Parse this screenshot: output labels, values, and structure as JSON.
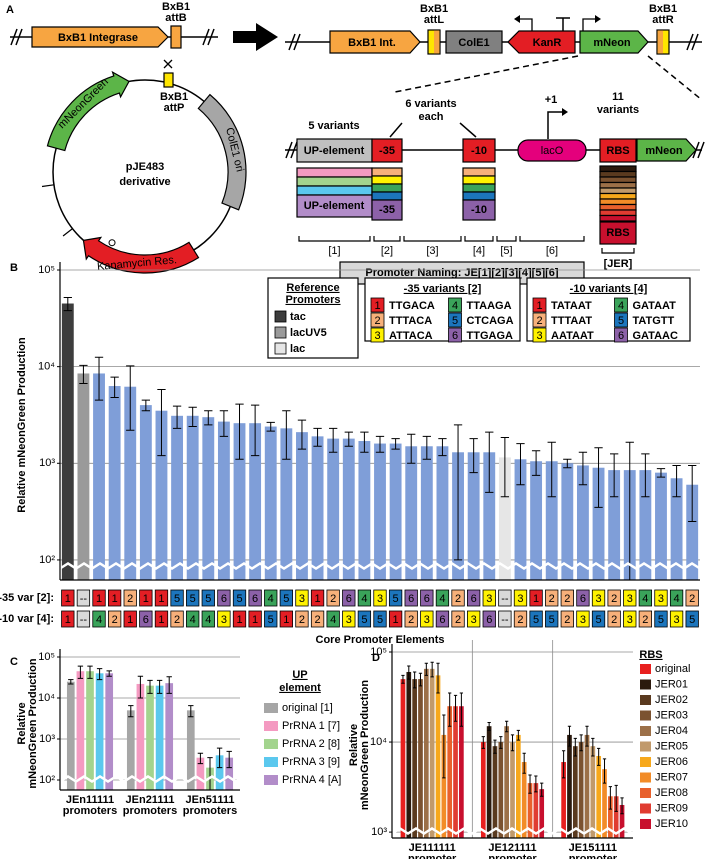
{
  "panel_a": {
    "label": "A",
    "integrase": "BxB1 Integrase",
    "attB": [
      "BxB1",
      "attB"
    ],
    "attP": [
      "BxB1",
      "attP"
    ],
    "plasmid": [
      "pJE483",
      "derivative"
    ],
    "plasmid_mneongreen": "mNeonGreen",
    "plasmid_cole1": "ColE1 ori",
    "plasmid_kanr": "Kanamycin Res.",
    "int": "BxB1 Int.",
    "attL": [
      "BxB1",
      "attL"
    ],
    "cole1": "ColE1",
    "kanr": "KanR",
    "mneon": "mNeon",
    "attR": [
      "BxB1",
      "attR"
    ],
    "up_variants": "5 variants",
    "m35_variants": [
      "6 variants",
      "each"
    ],
    "plus1": "+1",
    "rbs_variants": [
      "11",
      "variants"
    ],
    "up": "UP-element",
    "m35": "-35",
    "m10": "-10",
    "laco": "lacO",
    "rbs": "RBS",
    "mneon2": "mNeon",
    "up_var": "UP-element",
    "m35_var": "-35",
    "m10_var": "-10",
    "rbs_var": "RBS",
    "positions": [
      "[1]",
      "[2]",
      "[3]",
      "[4]",
      "[5]",
      "[6]"
    ],
    "naming": "Promoter Naming: JE[1][2][3][4][5][6]",
    "jer": "[JER]"
  },
  "chart_data": [
    {
      "type": "bar",
      "panel": "B",
      "y_label": "Relative mNeonGreen Production",
      "x_label": "Core Promoter Elements",
      "log_scale": true,
      "grid": true,
      "ylim": [
        62,
        100000
      ],
      "yticks": [
        {
          "value": 100,
          "label": "10²"
        },
        {
          "value": 1000,
          "label": "10³"
        },
        {
          "value": 10000,
          "label": "10⁴"
        },
        {
          "value": 100000,
          "label": "10⁵"
        }
      ],
      "values": [
        45000,
        8500,
        8500,
        6300,
        6200,
        4000,
        3500,
        3100,
        3100,
        3000,
        2700,
        2600,
        2600,
        2400,
        2300,
        2100,
        1900,
        1800,
        1800,
        1700,
        1600,
        1600,
        1500,
        1500,
        1500,
        1300,
        1300,
        1300,
        1150,
        1100,
        1050,
        1050,
        1000,
        950,
        900,
        850,
        850,
        850,
        800,
        700,
        600
      ],
      "errors": [
        7000,
        1800,
        4000,
        1500,
        4000,
        500,
        2300,
        800,
        700,
        500,
        800,
        1500,
        1400,
        250,
        1200,
        700,
        400,
        500,
        300,
        400,
        300,
        200,
        500,
        400,
        300,
        1200,
        500,
        800,
        700,
        500,
        300,
        600,
        100,
        350,
        550,
        400,
        800,
        400,
        80,
        250,
        350
      ],
      "colors": [
        "#3d3d3d",
        "#9a9a9a",
        "#7f9ed8",
        "#7f9ed8",
        "#7f9ed8",
        "#7f9ed8",
        "#7f9ed8",
        "#7f9ed8",
        "#7f9ed8",
        "#7f9ed8",
        "#7f9ed8",
        "#7f9ed8",
        "#7f9ed8",
        "#7f9ed8",
        "#7f9ed8",
        "#7f9ed8",
        "#7f9ed8",
        "#7f9ed8",
        "#7f9ed8",
        "#7f9ed8",
        "#7f9ed8",
        "#7f9ed8",
        "#7f9ed8",
        "#7f9ed8",
        "#7f9ed8",
        "#7f9ed8",
        "#7f9ed8",
        "#7f9ed8",
        "#e6e6e6",
        "#7f9ed8",
        "#7f9ed8",
        "#7f9ed8",
        "#7f9ed8",
        "#7f9ed8",
        "#7f9ed8",
        "#7f9ed8",
        "#7f9ed8",
        "#7f9ed8",
        "#7f9ed8",
        "#7f9ed8",
        "#7f9ed8"
      ],
      "element_rows": [
        {
          "label": "-35 var [2]:",
          "codes": [
            "1",
            "--",
            "1",
            "1",
            "2",
            "1",
            "1",
            "5",
            "5",
            "5",
            "6",
            "5",
            "6",
            "4",
            "5",
            "3",
            "1",
            "2",
            "6",
            "4",
            "3",
            "5",
            "6",
            "6",
            "4",
            "2",
            "6",
            "3",
            "--",
            "3",
            "1",
            "2",
            "2",
            "6",
            "3",
            "2",
            "3",
            "4",
            "3",
            "4",
            "2"
          ]
        },
        {
          "label": "-10 var [4]:",
          "codes": [
            "1",
            "--",
            "4",
            "2",
            "1",
            "6",
            "1",
            "2",
            "4",
            "4",
            "3",
            "1",
            "1",
            "5",
            "1",
            "2",
            "2",
            "4",
            "3",
            "5",
            "5",
            "1",
            "2",
            "3",
            "6",
            "2",
            "3",
            "6",
            "--",
            "2",
            "5",
            "5",
            "2",
            "3",
            "5",
            "2",
            "3",
            "2",
            "5",
            "3",
            "5"
          ]
        }
      ],
      "code_colors": {
        "1": "#e31e24",
        "2": "#f7b07a",
        "3": "#fff200",
        "4": "#3aa35a",
        "5": "#1c75bc",
        "6": "#8c61a8",
        "--": "#d9d9d9"
      },
      "reference_legend": {
        "title": [
          "Reference",
          "Promoters"
        ],
        "items": [
          {
            "name": "tac",
            "color": "#3d3d3d"
          },
          {
            "name": "lacUV5",
            "color": "#9a9a9a"
          },
          {
            "name": "lac",
            "color": "#e6e6e6"
          }
        ]
      },
      "minus35_legend": {
        "title": "-35 variants [2]",
        "items": [
          {
            "code": "1",
            "sequence": "TTGACA"
          },
          {
            "code": "2",
            "sequence": "TTTACA"
          },
          {
            "code": "3",
            "sequence": "ATTACA"
          },
          {
            "code": "4",
            "sequence": "TTAAGA"
          },
          {
            "code": "5",
            "sequence": "CTCAGA"
          },
          {
            "code": "6",
            "sequence": "TTGAGA"
          }
        ]
      },
      "minus10_legend": {
        "title": "-10 variants [4]",
        "items": [
          {
            "code": "1",
            "sequence": "TATAAT"
          },
          {
            "code": "2",
            "sequence": "TTTAAT"
          },
          {
            "code": "3",
            "sequence": "AATAAT"
          },
          {
            "code": "4",
            "sequence": "GATAAT"
          },
          {
            "code": "5",
            "sequence": "TATGTT"
          },
          {
            "code": "6",
            "sequence": "GATAAC"
          }
        ]
      }
    },
    {
      "type": "bar",
      "panel": "C",
      "y_label": [
        "Relative",
        "mNeonGreen Production"
      ],
      "log_scale": true,
      "grid": true,
      "ylim": [
        57,
        100000
      ],
      "yticks": [
        {
          "value": 100,
          "label": "10²"
        },
        {
          "value": 1000,
          "label": "10³"
        },
        {
          "value": 10000,
          "label": "10⁴"
        },
        {
          "value": 100000,
          "label": "10⁵"
        }
      ],
      "categories": [
        [
          "JEn11111",
          "promoters"
        ],
        [
          "JEn21111",
          "promoters"
        ],
        [
          "JEn51111",
          "promoters"
        ]
      ],
      "legend_title": [
        "UP",
        "element"
      ],
      "series": [
        {
          "name": "original [1]",
          "color": "#a6a6a6",
          "values": [
            25000,
            5000,
            5000
          ],
          "errors": [
            3000,
            1500,
            1500
          ]
        },
        {
          "name": "PrRNA 1 [7]",
          "color": "#f49ac1",
          "values": [
            45000,
            22000,
            350
          ],
          "errors": [
            15000,
            12000,
            100
          ]
        },
        {
          "name": "PrRNA 2 [8]",
          "color": "#a3d48e",
          "values": [
            45000,
            20000,
            200
          ],
          "errors": [
            15000,
            7000,
            150
          ]
        },
        {
          "name": "PrRNA 3 [9]",
          "color": "#5bc8ee",
          "values": [
            40000,
            20000,
            400
          ],
          "errors": [
            12000,
            7000,
            200
          ]
        },
        {
          "name": "PrRNA 4 [A]",
          "color": "#b28dc9",
          "values": [
            40000,
            23000,
            350
          ],
          "errors": [
            6000,
            10000,
            150
          ]
        }
      ]
    },
    {
      "type": "bar",
      "panel": "D",
      "y_label": [
        "Relative",
        "mNeonGreen Production"
      ],
      "log_scale": true,
      "grid": true,
      "vertical_grid": true,
      "ylim": [
        860,
        100000
      ],
      "yticks": [
        {
          "value": 1000,
          "label": "10³"
        },
        {
          "value": 10000,
          "label": "10⁴"
        },
        {
          "value": 100000,
          "label": "10⁵"
        }
      ],
      "categories": [
        [
          "JE111111",
          "promoter"
        ],
        [
          "JE121111",
          "promoter"
        ],
        [
          "JE151111",
          "promoter"
        ]
      ],
      "legend_title": "RBS",
      "series": [
        {
          "name": "original",
          "color": "#e8201f",
          "values": [
            50000,
            10000,
            6000
          ],
          "errors": [
            5000,
            1500,
            2000
          ]
        },
        {
          "name": "JER01",
          "color": "#2b1a0e",
          "values": [
            60000,
            15000,
            12000
          ],
          "errors": [
            10000,
            1500,
            3000
          ]
        },
        {
          "name": "JER02",
          "color": "#5a3a1f",
          "values": [
            50000,
            9000,
            9000
          ],
          "errors": [
            10000,
            1500,
            2000
          ]
        },
        {
          "name": "JER03",
          "color": "#7b5230",
          "values": [
            50000,
            10000,
            10000
          ],
          "errors": [
            8000,
            1500,
            2000
          ]
        },
        {
          "name": "JER04",
          "color": "#9c7048",
          "values": [
            65000,
            15000,
            12000
          ],
          "errors": [
            10000,
            2000,
            3000
          ]
        },
        {
          "name": "JER05",
          "color": "#c19a6b",
          "values": [
            65000,
            10000,
            9000
          ],
          "errors": [
            12000,
            2000,
            2000
          ]
        },
        {
          "name": "JER06",
          "color": "#f7a81b",
          "values": [
            55000,
            12000,
            7000
          ],
          "errors": [
            20000,
            1500,
            1500
          ]
        },
        {
          "name": "JER07",
          "color": "#f28c28",
          "values": [
            12000,
            6000,
            5000
          ],
          "errors": [
            8000,
            1500,
            1500
          ]
        },
        {
          "name": "JER08",
          "color": "#e8602c",
          "values": [
            25000,
            3500,
            2500
          ],
          "errors": [
            10000,
            800,
            700
          ]
        },
        {
          "name": "JER09",
          "color": "#e03c31",
          "values": [
            25000,
            3500,
            2500
          ],
          "errors": [
            8000,
            700,
            800
          ]
        },
        {
          "name": "JER10",
          "color": "#c8102e",
          "values": [
            25000,
            3000,
            2000
          ],
          "errors": [
            10000,
            500,
            400
          ]
        }
      ]
    }
  ]
}
